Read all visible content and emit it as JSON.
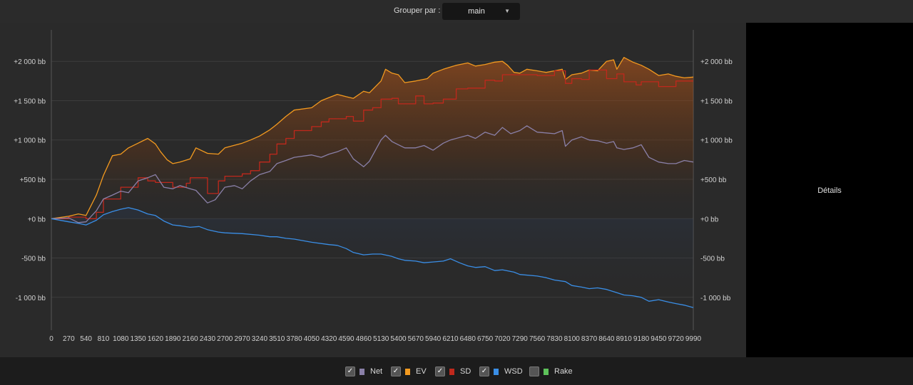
{
  "toolbar": {
    "group_label": "Grouper par :",
    "group_value": "main",
    "dropdown_arrow": "▼"
  },
  "details_panel": {
    "label": "Détails"
  },
  "legend": [
    {
      "label": "Net",
      "color": "#8a80a8",
      "checked": true
    },
    {
      "label": "EV",
      "color": "#f39a1f",
      "checked": true
    },
    {
      "label": "SD",
      "color": "#c0281c",
      "checked": true
    },
    {
      "label": "WSD",
      "color": "#3a8ee6",
      "checked": true
    },
    {
      "label": "Rake",
      "color": "#5ec25a",
      "checked": false
    }
  ],
  "checkbox_mark": "✓",
  "chart_data": {
    "type": "line",
    "xlim": [
      0,
      9990
    ],
    "ylim": [
      -1400,
      2400
    ],
    "x_ticks": [
      0,
      270,
      540,
      810,
      1080,
      1350,
      1620,
      1890,
      2160,
      2430,
      2700,
      2970,
      3240,
      3510,
      3780,
      4050,
      4320,
      4590,
      4860,
      5130,
      5400,
      5670,
      5940,
      6210,
      6480,
      6750,
      7020,
      7290,
      7560,
      7830,
      8100,
      8370,
      8640,
      8910,
      9180,
      9450,
      9720,
      9990
    ],
    "y_ticks": [
      {
        "value": 2000,
        "label": "+2 000 bb"
      },
      {
        "value": 1500,
        "label": "+1 500 bb"
      },
      {
        "value": 1000,
        "label": "+1 000 bb"
      },
      {
        "value": 500,
        "label": "+500 bb"
      },
      {
        "value": 0,
        "label": "+0 bb"
      },
      {
        "value": -500,
        "label": "-500 bb"
      },
      {
        "value": -1000,
        "label": "-1 000 bb"
      }
    ],
    "grid": true,
    "series": [
      {
        "name": "EV",
        "color": "#f39a1f",
        "step": false,
        "points": [
          [
            0,
            0
          ],
          [
            270,
            30
          ],
          [
            420,
            60
          ],
          [
            540,
            40
          ],
          [
            700,
            300
          ],
          [
            810,
            550
          ],
          [
            950,
            800
          ],
          [
            1080,
            820
          ],
          [
            1200,
            900
          ],
          [
            1350,
            960
          ],
          [
            1500,
            1020
          ],
          [
            1620,
            950
          ],
          [
            1700,
            850
          ],
          [
            1800,
            750
          ],
          [
            1890,
            700
          ],
          [
            2000,
            720
          ],
          [
            2160,
            760
          ],
          [
            2250,
            900
          ],
          [
            2430,
            830
          ],
          [
            2600,
            820
          ],
          [
            2700,
            900
          ],
          [
            2970,
            960
          ],
          [
            3100,
            1000
          ],
          [
            3240,
            1050
          ],
          [
            3400,
            1130
          ],
          [
            3510,
            1200
          ],
          [
            3650,
            1300
          ],
          [
            3780,
            1380
          ],
          [
            4050,
            1410
          ],
          [
            4200,
            1500
          ],
          [
            4320,
            1540
          ],
          [
            4450,
            1580
          ],
          [
            4590,
            1550
          ],
          [
            4700,
            1530
          ],
          [
            4860,
            1620
          ],
          [
            4950,
            1600
          ],
          [
            5130,
            1750
          ],
          [
            5200,
            1900
          ],
          [
            5300,
            1850
          ],
          [
            5400,
            1830
          ],
          [
            5500,
            1730
          ],
          [
            5670,
            1750
          ],
          [
            5850,
            1780
          ],
          [
            5940,
            1850
          ],
          [
            6100,
            1900
          ],
          [
            6300,
            1950
          ],
          [
            6480,
            1980
          ],
          [
            6600,
            1940
          ],
          [
            6750,
            1960
          ],
          [
            6900,
            1990
          ],
          [
            7020,
            2000
          ],
          [
            7100,
            1950
          ],
          [
            7200,
            1860
          ],
          [
            7290,
            1850
          ],
          [
            7400,
            1900
          ],
          [
            7560,
            1880
          ],
          [
            7700,
            1860
          ],
          [
            7830,
            1880
          ],
          [
            7950,
            1900
          ],
          [
            8000,
            1770
          ],
          [
            8100,
            1830
          ],
          [
            8250,
            1850
          ],
          [
            8370,
            1890
          ],
          [
            8500,
            1880
          ],
          [
            8640,
            2000
          ],
          [
            8750,
            2020
          ],
          [
            8800,
            1900
          ],
          [
            8910,
            2050
          ],
          [
            9050,
            1990
          ],
          [
            9180,
            1950
          ],
          [
            9300,
            1900
          ],
          [
            9450,
            1820
          ],
          [
            9600,
            1840
          ],
          [
            9720,
            1810
          ],
          [
            9850,
            1790
          ],
          [
            9990,
            1800
          ]
        ]
      },
      {
        "name": "SD",
        "color": "#c0281c",
        "step": true,
        "points": [
          [
            0,
            0
          ],
          [
            270,
            20
          ],
          [
            540,
            0
          ],
          [
            700,
            80
          ],
          [
            810,
            250
          ],
          [
            1080,
            400
          ],
          [
            1350,
            520
          ],
          [
            1500,
            480
          ],
          [
            1620,
            460
          ],
          [
            1890,
            400
          ],
          [
            2100,
            450
          ],
          [
            2160,
            520
          ],
          [
            2430,
            320
          ],
          [
            2600,
            480
          ],
          [
            2700,
            540
          ],
          [
            2970,
            570
          ],
          [
            3100,
            610
          ],
          [
            3240,
            720
          ],
          [
            3400,
            820
          ],
          [
            3510,
            950
          ],
          [
            3650,
            1020
          ],
          [
            3780,
            1120
          ],
          [
            4050,
            1170
          ],
          [
            4200,
            1230
          ],
          [
            4320,
            1270
          ],
          [
            4590,
            1300
          ],
          [
            4700,
            1240
          ],
          [
            4860,
            1380
          ],
          [
            5000,
            1410
          ],
          [
            5130,
            1520
          ],
          [
            5300,
            1530
          ],
          [
            5400,
            1460
          ],
          [
            5670,
            1560
          ],
          [
            5800,
            1460
          ],
          [
            5940,
            1470
          ],
          [
            6100,
            1520
          ],
          [
            6300,
            1650
          ],
          [
            6480,
            1660
          ],
          [
            6750,
            1760
          ],
          [
            6900,
            1750
          ],
          [
            7020,
            1830
          ],
          [
            7290,
            1830
          ],
          [
            7560,
            1820
          ],
          [
            7830,
            1880
          ],
          [
            8000,
            1720
          ],
          [
            8100,
            1780
          ],
          [
            8250,
            1770
          ],
          [
            8370,
            1890
          ],
          [
            8640,
            1780
          ],
          [
            8800,
            1840
          ],
          [
            8910,
            1740
          ],
          [
            9100,
            1700
          ],
          [
            9180,
            1740
          ],
          [
            9300,
            1740
          ],
          [
            9450,
            1680
          ],
          [
            9720,
            1750
          ],
          [
            9990,
            1750
          ]
        ]
      },
      {
        "name": "Net",
        "color": "#8a80a8",
        "step": false,
        "points": [
          [
            0,
            0
          ],
          [
            270,
            10
          ],
          [
            420,
            -50
          ],
          [
            540,
            -40
          ],
          [
            700,
            100
          ],
          [
            810,
            250
          ],
          [
            950,
            300
          ],
          [
            1080,
            350
          ],
          [
            1200,
            330
          ],
          [
            1350,
            480
          ],
          [
            1500,
            520
          ],
          [
            1620,
            560
          ],
          [
            1750,
            400
          ],
          [
            1890,
            380
          ],
          [
            2000,
            420
          ],
          [
            2160,
            380
          ],
          [
            2250,
            360
          ],
          [
            2430,
            200
          ],
          [
            2550,
            240
          ],
          [
            2700,
            400
          ],
          [
            2850,
            420
          ],
          [
            2970,
            380
          ],
          [
            3100,
            480
          ],
          [
            3240,
            560
          ],
          [
            3400,
            600
          ],
          [
            3510,
            700
          ],
          [
            3650,
            740
          ],
          [
            3780,
            780
          ],
          [
            4050,
            810
          ],
          [
            4200,
            780
          ],
          [
            4320,
            820
          ],
          [
            4450,
            850
          ],
          [
            4590,
            900
          ],
          [
            4700,
            760
          ],
          [
            4860,
            660
          ],
          [
            4950,
            730
          ],
          [
            5130,
            1000
          ],
          [
            5200,
            1060
          ],
          [
            5300,
            980
          ],
          [
            5400,
            940
          ],
          [
            5500,
            900
          ],
          [
            5670,
            900
          ],
          [
            5800,
            930
          ],
          [
            5940,
            870
          ],
          [
            6100,
            960
          ],
          [
            6210,
            1000
          ],
          [
            6480,
            1060
          ],
          [
            6600,
            1020
          ],
          [
            6750,
            1100
          ],
          [
            6900,
            1060
          ],
          [
            7020,
            1160
          ],
          [
            7150,
            1080
          ],
          [
            7290,
            1120
          ],
          [
            7400,
            1180
          ],
          [
            7560,
            1100
          ],
          [
            7700,
            1090
          ],
          [
            7830,
            1080
          ],
          [
            7950,
            1120
          ],
          [
            8000,
            920
          ],
          [
            8100,
            1000
          ],
          [
            8250,
            1040
          ],
          [
            8370,
            1000
          ],
          [
            8500,
            990
          ],
          [
            8640,
            960
          ],
          [
            8750,
            980
          ],
          [
            8800,
            900
          ],
          [
            8910,
            880
          ],
          [
            9050,
            900
          ],
          [
            9180,
            940
          ],
          [
            9300,
            780
          ],
          [
            9450,
            720
          ],
          [
            9600,
            700
          ],
          [
            9720,
            700
          ],
          [
            9850,
            740
          ],
          [
            9990,
            720
          ]
        ]
      },
      {
        "name": "WSD",
        "color": "#3a8ee6",
        "step": false,
        "points": [
          [
            0,
            0
          ],
          [
            270,
            -40
          ],
          [
            420,
            -60
          ],
          [
            540,
            -80
          ],
          [
            700,
            -20
          ],
          [
            810,
            50
          ],
          [
            950,
            90
          ],
          [
            1080,
            120
          ],
          [
            1200,
            140
          ],
          [
            1350,
            110
          ],
          [
            1500,
            60
          ],
          [
            1620,
            40
          ],
          [
            1750,
            -30
          ],
          [
            1890,
            -80
          ],
          [
            2000,
            -90
          ],
          [
            2160,
            -110
          ],
          [
            2300,
            -100
          ],
          [
            2430,
            -140
          ],
          [
            2600,
            -170
          ],
          [
            2700,
            -180
          ],
          [
            2970,
            -190
          ],
          [
            3240,
            -210
          ],
          [
            3400,
            -230
          ],
          [
            3510,
            -230
          ],
          [
            3650,
            -250
          ],
          [
            3780,
            -260
          ],
          [
            4050,
            -300
          ],
          [
            4320,
            -330
          ],
          [
            4450,
            -340
          ],
          [
            4590,
            -380
          ],
          [
            4700,
            -430
          ],
          [
            4860,
            -460
          ],
          [
            5000,
            -450
          ],
          [
            5130,
            -450
          ],
          [
            5300,
            -480
          ],
          [
            5400,
            -510
          ],
          [
            5500,
            -530
          ],
          [
            5670,
            -540
          ],
          [
            5800,
            -560
          ],
          [
            5940,
            -550
          ],
          [
            6100,
            -540
          ],
          [
            6210,
            -510
          ],
          [
            6350,
            -560
          ],
          [
            6480,
            -600
          ],
          [
            6600,
            -620
          ],
          [
            6750,
            -610
          ],
          [
            6900,
            -660
          ],
          [
            7020,
            -650
          ],
          [
            7200,
            -680
          ],
          [
            7290,
            -710
          ],
          [
            7560,
            -730
          ],
          [
            7700,
            -750
          ],
          [
            7830,
            -780
          ],
          [
            8000,
            -800
          ],
          [
            8100,
            -850
          ],
          [
            8250,
            -870
          ],
          [
            8370,
            -890
          ],
          [
            8500,
            -880
          ],
          [
            8640,
            -900
          ],
          [
            8800,
            -940
          ],
          [
            8910,
            -970
          ],
          [
            9050,
            -980
          ],
          [
            9180,
            -1000
          ],
          [
            9300,
            -1050
          ],
          [
            9450,
            -1030
          ],
          [
            9600,
            -1060
          ],
          [
            9720,
            -1080
          ],
          [
            9850,
            -1100
          ],
          [
            9990,
            -1130
          ]
        ]
      }
    ]
  }
}
